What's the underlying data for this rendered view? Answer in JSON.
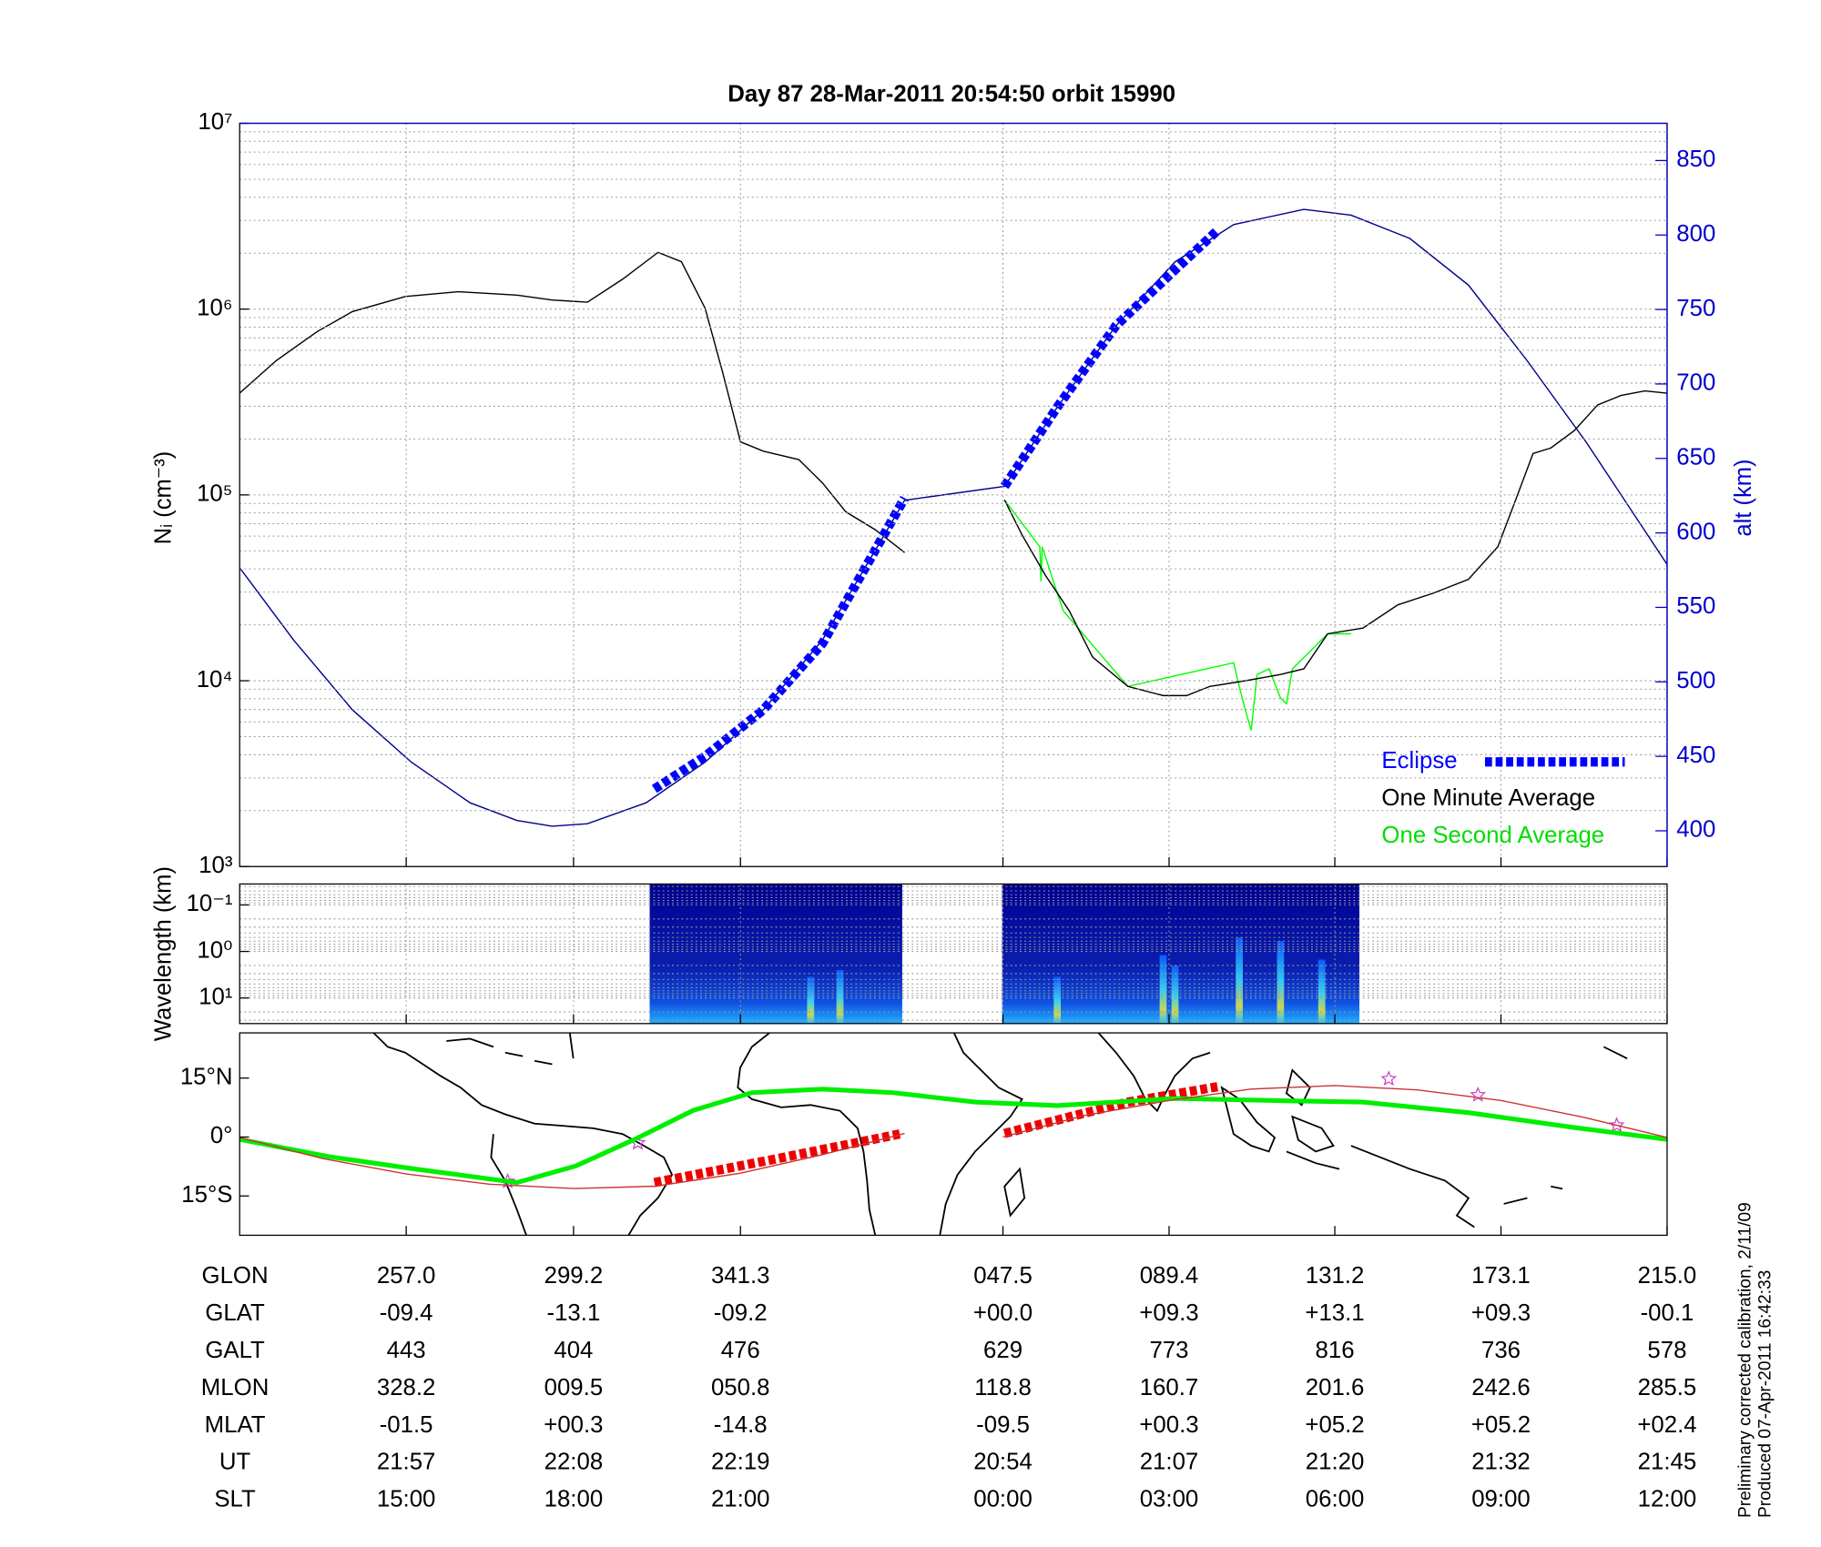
{
  "chart_data": [
    {
      "type": "line",
      "title": "Day 87  28-Mar-2011 20:54:50   orbit 15990",
      "ylabel": "Nᵢ (cm⁻³)",
      "y2label": "alt (km)",
      "yscale": "log",
      "grid": true,
      "legend": "lower right",
      "xlim": [
        215,
        575
      ],
      "xticks": [
        257,
        299.2,
        341.3,
        407.5,
        449.4,
        491.2,
        533.1,
        575
      ],
      "ylim": [
        1000,
        10000000
      ],
      "yticks": [
        {
          "value": 1000,
          "label": "10³"
        },
        {
          "value": 10000,
          "label": "10⁴"
        },
        {
          "value": 100000,
          "label": "10⁵"
        },
        {
          "value": 1000000,
          "label": "10⁶"
        },
        {
          "value": 10000000,
          "label": "10⁷"
        }
      ],
      "y2lim": [
        376,
        875
      ],
      "y2ticks": [
        400,
        450,
        500,
        550,
        600,
        650,
        700,
        750,
        800,
        850
      ],
      "series": [
        {
          "name": "Eclipse",
          "color": "#0000ff",
          "style": "dashed",
          "axis": "y2",
          "x": [
            319.6,
            332.4,
            347.1,
            362.0,
            382.7,
            null,
            407.9,
            421.2,
            436.0,
            450.9,
            461.6
          ],
          "values": [
            428.1,
            450,
            481.3,
            525.8,
            623.4,
            null,
            631.3,
            684.4,
            739.1,
            776.6,
            803.1
          ]
        },
        {
          "name": "One Minute Average",
          "color": "#000000",
          "style": "line",
          "x": [
            215.0,
            224.2,
            234.6,
            243.4,
            256.8,
            270.1,
            284.9,
            293.8,
            302.7,
            311.6,
            320.5,
            326.4,
            332.4,
            336.8,
            341.3,
            347.1,
            356.0,
            362.0,
            367.9,
            375.3,
            382.7,
            null,
            407.9,
            412.3,
            418.3,
            424.2,
            430.1,
            439.0,
            447.9,
            453.8,
            459.7,
            468.6,
            477.5,
            483.4,
            489.4,
            498.3,
            507.1,
            516.0,
            524.9,
            532.3,
            536.8,
            541.2,
            545.7,
            551.6,
            557.5,
            563.4,
            569.4,
            575.0
          ],
          "values": [
            353000,
            528000,
            758000,
            969000,
            1170000,
            1240000,
            1190000,
            1120000,
            1090000,
            1450000,
            2020000,
            1800000,
            1010000,
            457000,
            193000,
            172000,
            155000,
            116000,
            81000,
            65000,
            49000,
            null,
            94000,
            61000,
            36700,
            23800,
            13400,
            9330,
            8320,
            8320,
            9330,
            10000,
            10800,
            11600,
            17900,
            19200,
            25600,
            29600,
            35100,
            52600,
            94000,
            167000,
            179000,
            222000,
            305000,
            343000,
            363000,
            353000
          ]
        },
        {
          "name": "One Second Average",
          "color": "#00ff00",
          "style": "line",
          "x": [
            407.9,
            416.8,
            417.1,
            417.4,
            421.2,
            422.7,
            439.0,
            465.7,
            467.1,
            468.6,
            470.1,
            471.6,
            474.6,
            477.5,
            479.0,
            480.5,
            489.4,
            495.3
          ],
          "values": [
            94000,
            52600,
            34200,
            52600,
            29600,
            23800,
            9330,
            12500,
            9330,
            7000,
            5400,
            10800,
            11600,
            8090,
            7520,
            11600,
            17900,
            17900
          ]
        },
        {
          "color": "#00008b",
          "style": "line",
          "axis": "y2",
          "x": [
            215,
            228.6,
            243.4,
            258.3,
            273.1,
            284.9,
            293.8,
            302.7,
            317.5,
            332.4,
            347.1,
            362.0,
            382.7,
            407.9,
            421.2,
            436.0,
            450.9,
            465.7,
            483.4,
            495.3,
            510.1,
            524.9,
            539.7,
            554.6,
            575
          ],
          "values": [
            576.6,
            528.1,
            481.3,
            446.1,
            418.8,
            407.0,
            403.1,
            404.7,
            418.8,
            446.1,
            481.3,
            528.1,
            621.9,
            631.3,
            684.4,
            739.1,
            782.0,
            807.0,
            817.2,
            813.3,
            797.7,
            766.4,
            715.6,
            660.9,
            578.9
          ]
        }
      ]
    },
    {
      "type": "heatmap",
      "ylabel": "Wavelength (km)",
      "yscale": "log",
      "grid": true,
      "xlim": [
        215,
        575
      ],
      "xticks": [
        257,
        299.2,
        341.3,
        407.5,
        449.4,
        491.2,
        533.1,
        575
      ],
      "ylim": [
        35.5,
        0.0355
      ],
      "yticks": [
        {
          "value": 0.1,
          "label": "10⁻¹"
        },
        {
          "value": 1,
          "label": "10⁰"
        },
        {
          "value": 10,
          "label": "10¹"
        }
      ],
      "spans": [
        {
          "x0": 318.4,
          "x1": 382.1
        },
        {
          "x0": 407.3,
          "x1": 497.4
        }
      ],
      "bursts": [
        {
          "x": 359.0,
          "extent": 3.5
        },
        {
          "x": 366.4,
          "extent": 2.5
        },
        {
          "x": 421.2,
          "extent": 3.5
        },
        {
          "x": 447.9,
          "extent": 1.2
        },
        {
          "x": 450.9,
          "extent": 2.0
        },
        {
          "x": 467.1,
          "extent": 0.5
        },
        {
          "x": 477.5,
          "extent": 0.6
        },
        {
          "x": 487.9,
          "extent": 1.5
        }
      ]
    },
    {
      "type": "map",
      "xlim": [
        215,
        575
      ],
      "xticks": [
        257,
        299.2,
        341.3,
        407.5,
        449.4,
        491.2,
        533.1,
        575
      ],
      "ylim": [
        -25,
        26.5
      ],
      "yticks": [
        {
          "value": -15,
          "label": "15°S"
        },
        {
          "value": 0,
          "label": "0°"
        },
        {
          "value": 15,
          "label": "15°N"
        }
      ],
      "series": [
        {
          "color": "#cc3333",
          "style": "line",
          "x": [
            215,
            236,
            257,
            278,
            299.2,
            320,
            341.3,
            362,
            382.7,
            null,
            407.5,
            428,
            449.4,
            470,
            491.2,
            512,
            533.1,
            554,
            575
          ],
          "values": [
            -0.1,
            -5.5,
            -9.4,
            -12,
            -13.1,
            -12.5,
            -9.2,
            -4.5,
            0.9,
            null,
            0,
            5.5,
            9.3,
            12.2,
            13.1,
            12,
            9.3,
            5,
            -0.1
          ]
        },
        {
          "color": "#00ee00",
          "style": "thick",
          "x": [
            215,
            237.5,
            258.3,
            284.9,
            299.7,
            314.6,
            329.4,
            344.2,
            362.0,
            379.8,
            400.5,
            421.2,
            450.9,
            480.5,
            498.3,
            524.9,
            551.6,
            575
          ],
          "values": [
            -0.6,
            -5.0,
            -8.0,
            -11.6,
            -7.4,
            -0.6,
            6.8,
            11.3,
            12.2,
            11.3,
            8.9,
            8.0,
            9.8,
            9.2,
            8.9,
            6.2,
            2.4,
            -0.6
          ]
        },
        {
          "color": "#ee0000",
          "style": "dashed",
          "x": [
            319.6,
            350,
            382.1,
            null,
            407.9,
            439,
            461.6
          ],
          "values": [
            -11.6,
            -5.6,
            0.9,
            null,
            0.9,
            8.9,
            12.8
          ]
        },
        {
          "color": "#cc44cc",
          "style": "stars",
          "x": [
            282.6,
            315.4,
            504.8,
            527.3,
            562.3
          ],
          "values": [
            -11.3,
            -1.5,
            14.8,
            10.7,
            3.0
          ]
        }
      ]
    }
  ],
  "table": {
    "rows": [
      {
        "label": "GLON",
        "values": [
          "257.0",
          "299.2",
          "341.3",
          "047.5",
          "089.4",
          "131.2",
          "173.1",
          "215.0"
        ]
      },
      {
        "label": "GLAT",
        "values": [
          "-09.4",
          "-13.1",
          "-09.2",
          "+00.0",
          "+09.3",
          "+13.1",
          "+09.3",
          "-00.1"
        ]
      },
      {
        "label": "GALT",
        "values": [
          "443",
          "404",
          "476",
          "629",
          "773",
          "816",
          "736",
          "578"
        ]
      },
      {
        "label": "MLON",
        "values": [
          "328.2",
          "009.5",
          "050.8",
          "118.8",
          "160.7",
          "201.6",
          "242.6",
          "285.5"
        ]
      },
      {
        "label": "MLAT",
        "values": [
          "-01.5",
          "+00.3",
          "-14.8",
          "-09.5",
          "+00.3",
          "+05.2",
          "+05.2",
          "+02.4"
        ]
      },
      {
        "label": "UT",
        "values": [
          "21:57",
          "22:08",
          "22:19",
          "20:54",
          "21:07",
          "21:20",
          "21:32",
          "21:45"
        ]
      },
      {
        "label": "SLT",
        "values": [
          "15:00",
          "18:00",
          "21:00",
          "00:00",
          "03:00",
          "06:00",
          "09:00",
          "12:00"
        ]
      }
    ]
  },
  "footnotes": [
    "Preliminary corrected calibration, 2/11/09",
    "Produced 07-Apr-2011 16:42:33"
  ]
}
